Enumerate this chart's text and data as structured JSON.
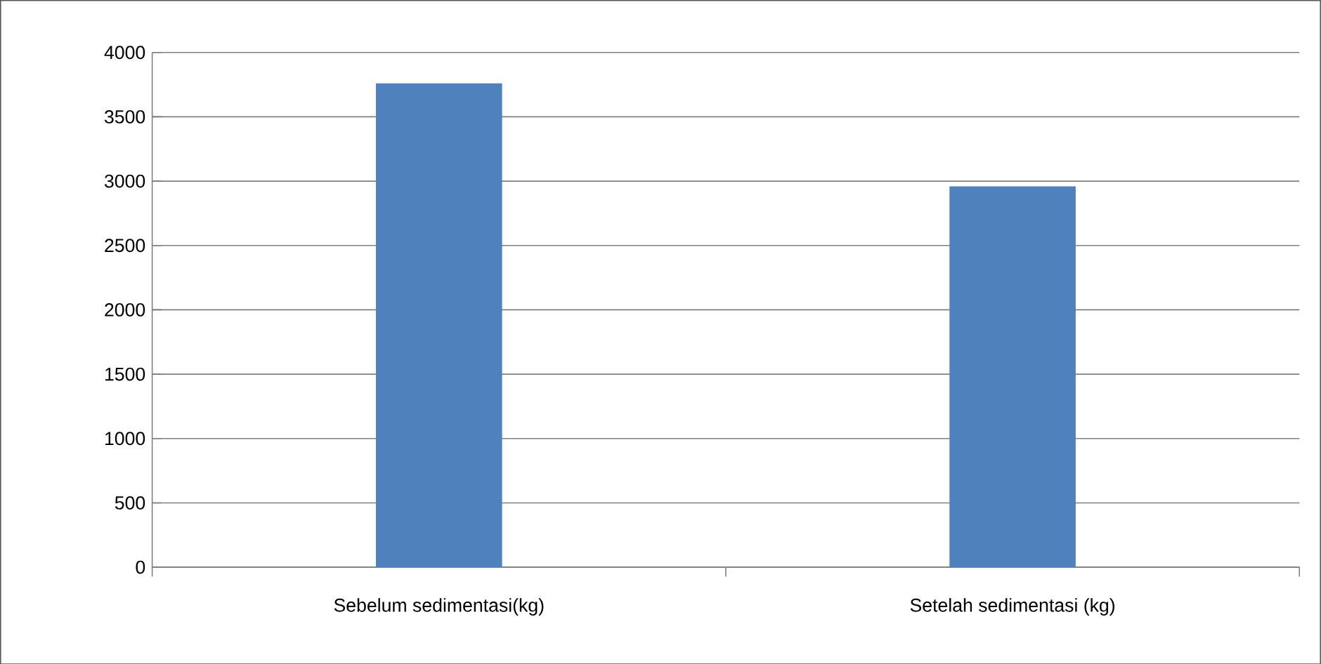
{
  "chart_data": {
    "type": "bar",
    "categories": [
      "Sebelum sedimentasi(kg)",
      "Setelah sedimentasi  (kg)"
    ],
    "values": [
      3760,
      2960
    ],
    "color": "#4f81bd",
    "ylim": [
      0,
      4000
    ],
    "yticks": [
      0,
      500,
      1000,
      1500,
      2000,
      2500,
      3000,
      3500,
      4000
    ],
    "grid": "y"
  }
}
